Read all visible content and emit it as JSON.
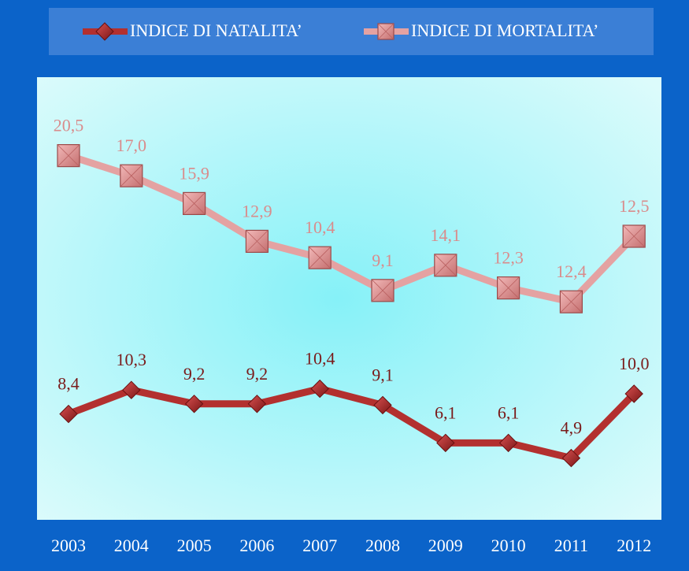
{
  "chart_data": {
    "type": "line",
    "stacked": true,
    "categories": [
      "2003",
      "2004",
      "2005",
      "2006",
      "2007",
      "2008",
      "2009",
      "2010",
      "2011",
      "2012"
    ],
    "series": [
      {
        "name": "INDICE DI NATALITA’",
        "color": "#b3302f",
        "marker": "diamond",
        "values": [
          8.4,
          10.3,
          9.2,
          9.2,
          10.4,
          9.1,
          6.1,
          6.1,
          4.9,
          10.0
        ],
        "value_labels": [
          "8,4",
          "10,3",
          "9,2",
          "9,2",
          "10,4",
          "9,1",
          "6,1",
          "6,1",
          "4,9",
          "10,0"
        ]
      },
      {
        "name": "INDICE DI MORTALITA’",
        "color": "#e4a2a2",
        "marker": "square",
        "values": [
          20.5,
          17.0,
          15.9,
          12.9,
          10.4,
          9.1,
          14.1,
          12.3,
          12.4,
          12.5
        ],
        "value_labels": [
          "20,5",
          "17,0",
          "15,9",
          "12,9",
          "10,4",
          "9,1",
          "14,1",
          "12,3",
          "12,4",
          "12,5"
        ]
      }
    ],
    "ylim": [
      0,
      35
    ],
    "yticks": [],
    "grid": false,
    "legend": "top"
  }
}
